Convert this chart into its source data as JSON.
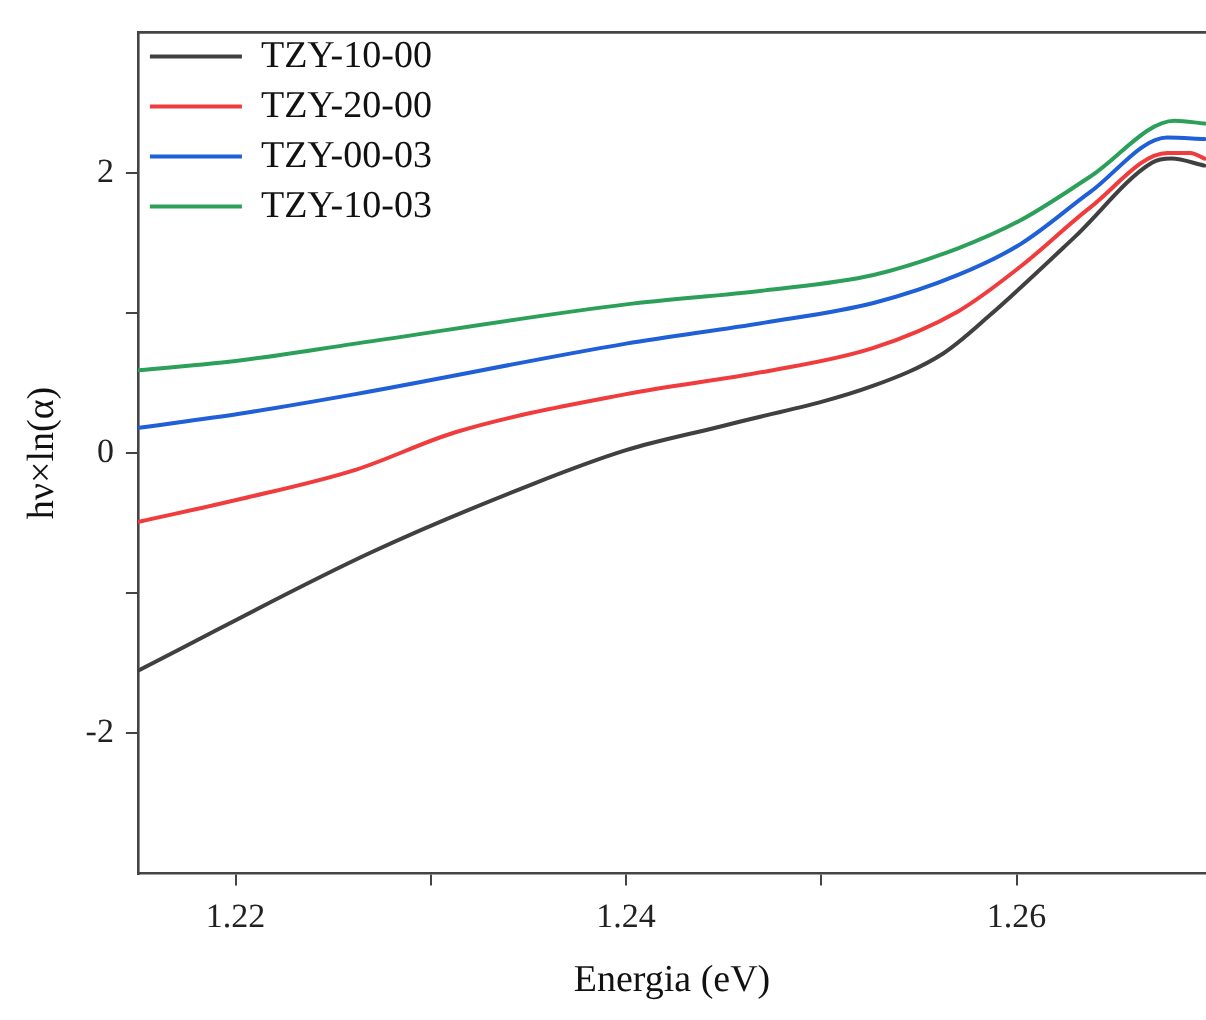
{
  "chart_data": {
    "type": "line",
    "xlabel": "Energia (eV)",
    "ylabel": "hν×ln(α)",
    "xlim": [
      1.215,
      1.2697
    ],
    "xticks": [
      1.22,
      {
        "value": 1.23,
        "label": null
      },
      1.24,
      {
        "value": 1.25,
        "label": null
      },
      1.26
    ],
    "ylim": [
      -3,
      3
    ],
    "yticks": [
      -2,
      {
        "value": -1,
        "label": null
      },
      0,
      {
        "value": 1,
        "label": null
      },
      2
    ],
    "grid": false,
    "legend": "top left",
    "marker": "none",
    "line_style": "solid",
    "series": [
      {
        "name": "TZY-10-00",
        "color": "#404040",
        "x": [
          1.21505,
          1.22693,
          1.23525,
          1.24,
          1.24515,
          1.25267,
          1.25624,
          1.25861,
          1.26297,
          1.26693,
          1.26792,
          1.26962
        ],
        "values": [
          -1.55,
          -0.71,
          -0.22,
          0.02,
          0.2,
          0.48,
          0.71,
          0.98,
          1.54,
          2.07,
          2.1,
          2.05
        ]
      },
      {
        "name": "TZY-20-00",
        "color": "#f03c3c",
        "x": [
          1.21505,
          1.2202,
          1.22614,
          1.2313,
          1.24,
          1.2471,
          1.25267,
          1.257,
          1.2602,
          1.26376,
          1.26772,
          1.2689,
          1.26962
        ],
        "values": [
          -0.49,
          -0.33,
          -0.12,
          0.15,
          0.42,
          0.58,
          0.75,
          1.01,
          1.33,
          1.75,
          2.14,
          2.14,
          2.1
        ]
      },
      {
        "name": "TZY-00-03",
        "color": "#1f5fd8",
        "x": [
          1.21505,
          1.2202,
          1.22614,
          1.24,
          1.2471,
          1.25267,
          1.257,
          1.2602,
          1.26376,
          1.26772,
          1.26962
        ],
        "values": [
          0.18,
          0.28,
          0.42,
          0.78,
          0.93,
          1.07,
          1.27,
          1.49,
          1.86,
          2.25,
          2.24
        ]
      },
      {
        "name": "TZY-10-03",
        "color": "#2ca05a",
        "x": [
          1.21505,
          1.2202,
          1.22614,
          1.24,
          1.2471,
          1.25267,
          1.257,
          1.2602,
          1.26376,
          1.2681,
          1.26962
        ],
        "values": [
          0.59,
          0.66,
          0.78,
          1.06,
          1.16,
          1.27,
          1.46,
          1.66,
          1.97,
          2.37,
          2.35
        ]
      }
    ]
  }
}
